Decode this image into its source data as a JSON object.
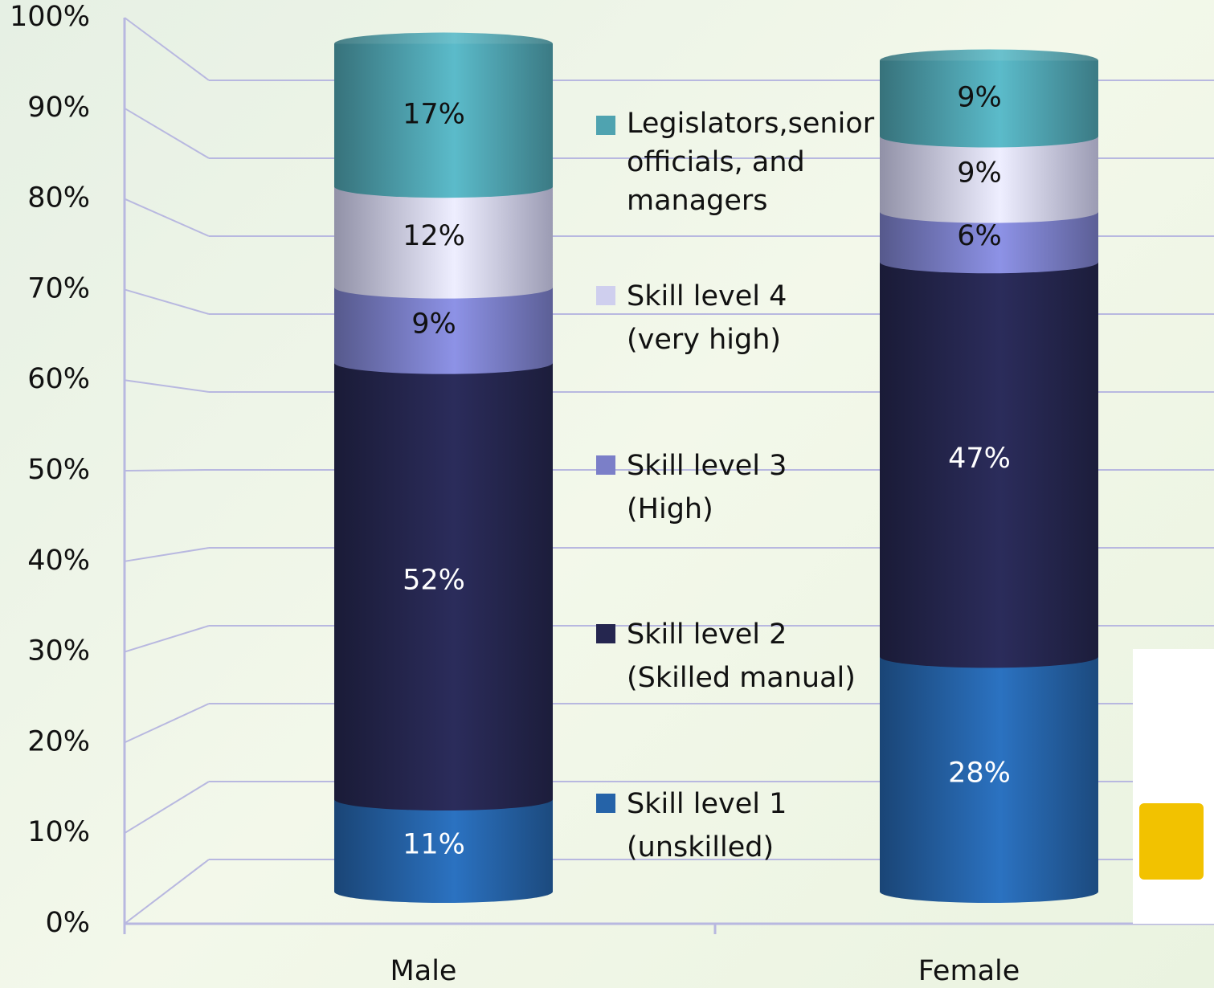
{
  "chart_data": {
    "type": "stacked-cylinder",
    "categories": [
      "Male",
      "Female"
    ],
    "series": [
      {
        "name": "Skill level 1 (unskilled)",
        "color": "#2563a8",
        "values": [
          11,
          28
        ],
        "value_labels": [
          "11%",
          "28%"
        ]
      },
      {
        "name": "Skill level 2 (Skilled manual)",
        "color": "#25264f",
        "values": [
          52,
          47
        ],
        "value_labels": [
          "52%",
          "47%"
        ]
      },
      {
        "name": "Skill level 3 (High)",
        "color": "#7b7fc8",
        "values": [
          9,
          6
        ],
        "value_labels": [
          "9%",
          "6%"
        ]
      },
      {
        "name": "Skill level 4 (very high)",
        "color": "#cfcfee",
        "values": [
          12,
          9
        ],
        "value_labels": [
          "12%",
          "9%"
        ]
      },
      {
        "name": "Legislators,senior officials, and managers",
        "color": "#4fa3b0",
        "values": [
          17,
          9
        ],
        "value_labels": [
          "17%",
          "9%"
        ]
      }
    ],
    "ylim": [
      0,
      100
    ],
    "yticks": [
      {
        "value": 0,
        "label": "0%"
      },
      {
        "value": 10,
        "label": "10%"
      },
      {
        "value": 20,
        "label": "20%"
      },
      {
        "value": 30,
        "label": "30%"
      },
      {
        "value": 40,
        "label": "40%"
      },
      {
        "value": 50,
        "label": "50%"
      },
      {
        "value": 60,
        "label": "60%"
      },
      {
        "value": 70,
        "label": "70%"
      },
      {
        "value": 80,
        "label": "80%"
      },
      {
        "value": 90,
        "label": "90%"
      },
      {
        "value": 100,
        "label": "100%"
      }
    ],
    "grid": true
  }
}
